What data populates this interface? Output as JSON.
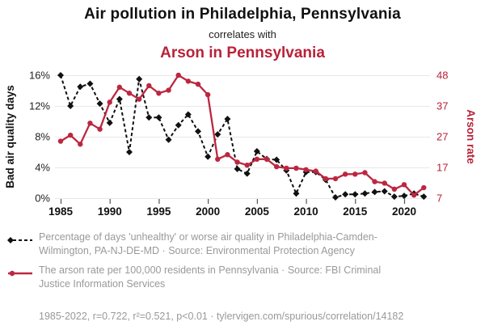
{
  "header": {
    "title": "Air pollution in Philadelphia, Pennsylvania",
    "subtitle": "correlates with",
    "title2": "Arson in Pennsylvania"
  },
  "colors": {
    "accent_red": "#b82239",
    "series_red": "#bc2740",
    "series_black": "#111111",
    "grid": "#e8e8e8",
    "tick": "#555555",
    "muted_text": "#999999"
  },
  "legend": {
    "items": [
      {
        "series": "air-quality",
        "text": "Percentage of days 'unhealthy' or worse air quality in Philadelphia-Camden-Wilmington, PA-NJ-DE-MD · Source: Environmental Protection Agency"
      },
      {
        "series": "arson-rate",
        "text": "The arson rate per 100,000 residents in Pennsylvania · Source: FBI Criminal Justice Information Services"
      }
    ]
  },
  "footer": {
    "text": "1985-2022, r=0.722, r²=0.521, p<0.01 · tylervigen.com/spurious/correlation/14182"
  },
  "chart_data": {
    "type": "line",
    "x": [
      1985,
      1986,
      1987,
      1988,
      1989,
      1990,
      1991,
      1992,
      1993,
      1994,
      1995,
      1996,
      1997,
      1998,
      1999,
      2000,
      2001,
      2002,
      2003,
      2004,
      2005,
      2006,
      2007,
      2008,
      2009,
      2010,
      2011,
      2012,
      2013,
      2014,
      2015,
      2016,
      2017,
      2018,
      2019,
      2020,
      2021,
      2022
    ],
    "x_ticks": [
      1985,
      1990,
      1995,
      2000,
      2005,
      2010,
      2015,
      2020
    ],
    "left_axis": {
      "label": "Bad air quality days",
      "tick_labels": [
        "0%",
        "4%",
        "8%",
        "12%",
        "16%"
      ],
      "tick_values": [
        0,
        4,
        8,
        12,
        16
      ],
      "range": [
        0,
        16
      ]
    },
    "right_axis": {
      "label": "Arson rate",
      "tick_labels": [
        "7",
        "17",
        "27",
        "37",
        "48"
      ],
      "range": [
        7,
        48
      ]
    },
    "grid": true,
    "legend_position": "bottom",
    "series": [
      {
        "name": "Percentage of days 'unhealthy' or worse air quality in Philadelphia-Camden-Wilmington, PA-NJ-DE-MD",
        "axis": "left",
        "style": "dashed",
        "marker": "diamond",
        "values": [
          16.0,
          12.0,
          14.5,
          14.9,
          12.3,
          9.8,
          12.9,
          6.0,
          15.5,
          10.5,
          10.5,
          7.6,
          9.5,
          10.9,
          8.7,
          5.4,
          8.3,
          10.3,
          3.8,
          3.2,
          6.1,
          5.1,
          5.0,
          3.6,
          0.6,
          3.4,
          3.4,
          2.4,
          0.1,
          0.5,
          0.5,
          0.6,
          0.8,
          0.9,
          0.2,
          0.3,
          0.6,
          0.2
        ]
      },
      {
        "name": "The arson rate per 100,000 residents in Pennsylvania",
        "axis": "right",
        "style": "solid",
        "marker": "circle",
        "values": [
          26,
          28,
          25,
          32,
          30,
          39,
          44,
          42,
          40,
          44.5,
          42,
          43,
          48,
          46,
          45,
          41.5,
          20,
          21.5,
          19,
          18,
          20,
          20,
          17.5,
          17,
          17,
          16.5,
          16,
          13.5,
          13.5,
          15,
          15,
          15.5,
          12.5,
          12,
          10,
          11.5,
          8,
          10.5
        ]
      }
    ]
  }
}
